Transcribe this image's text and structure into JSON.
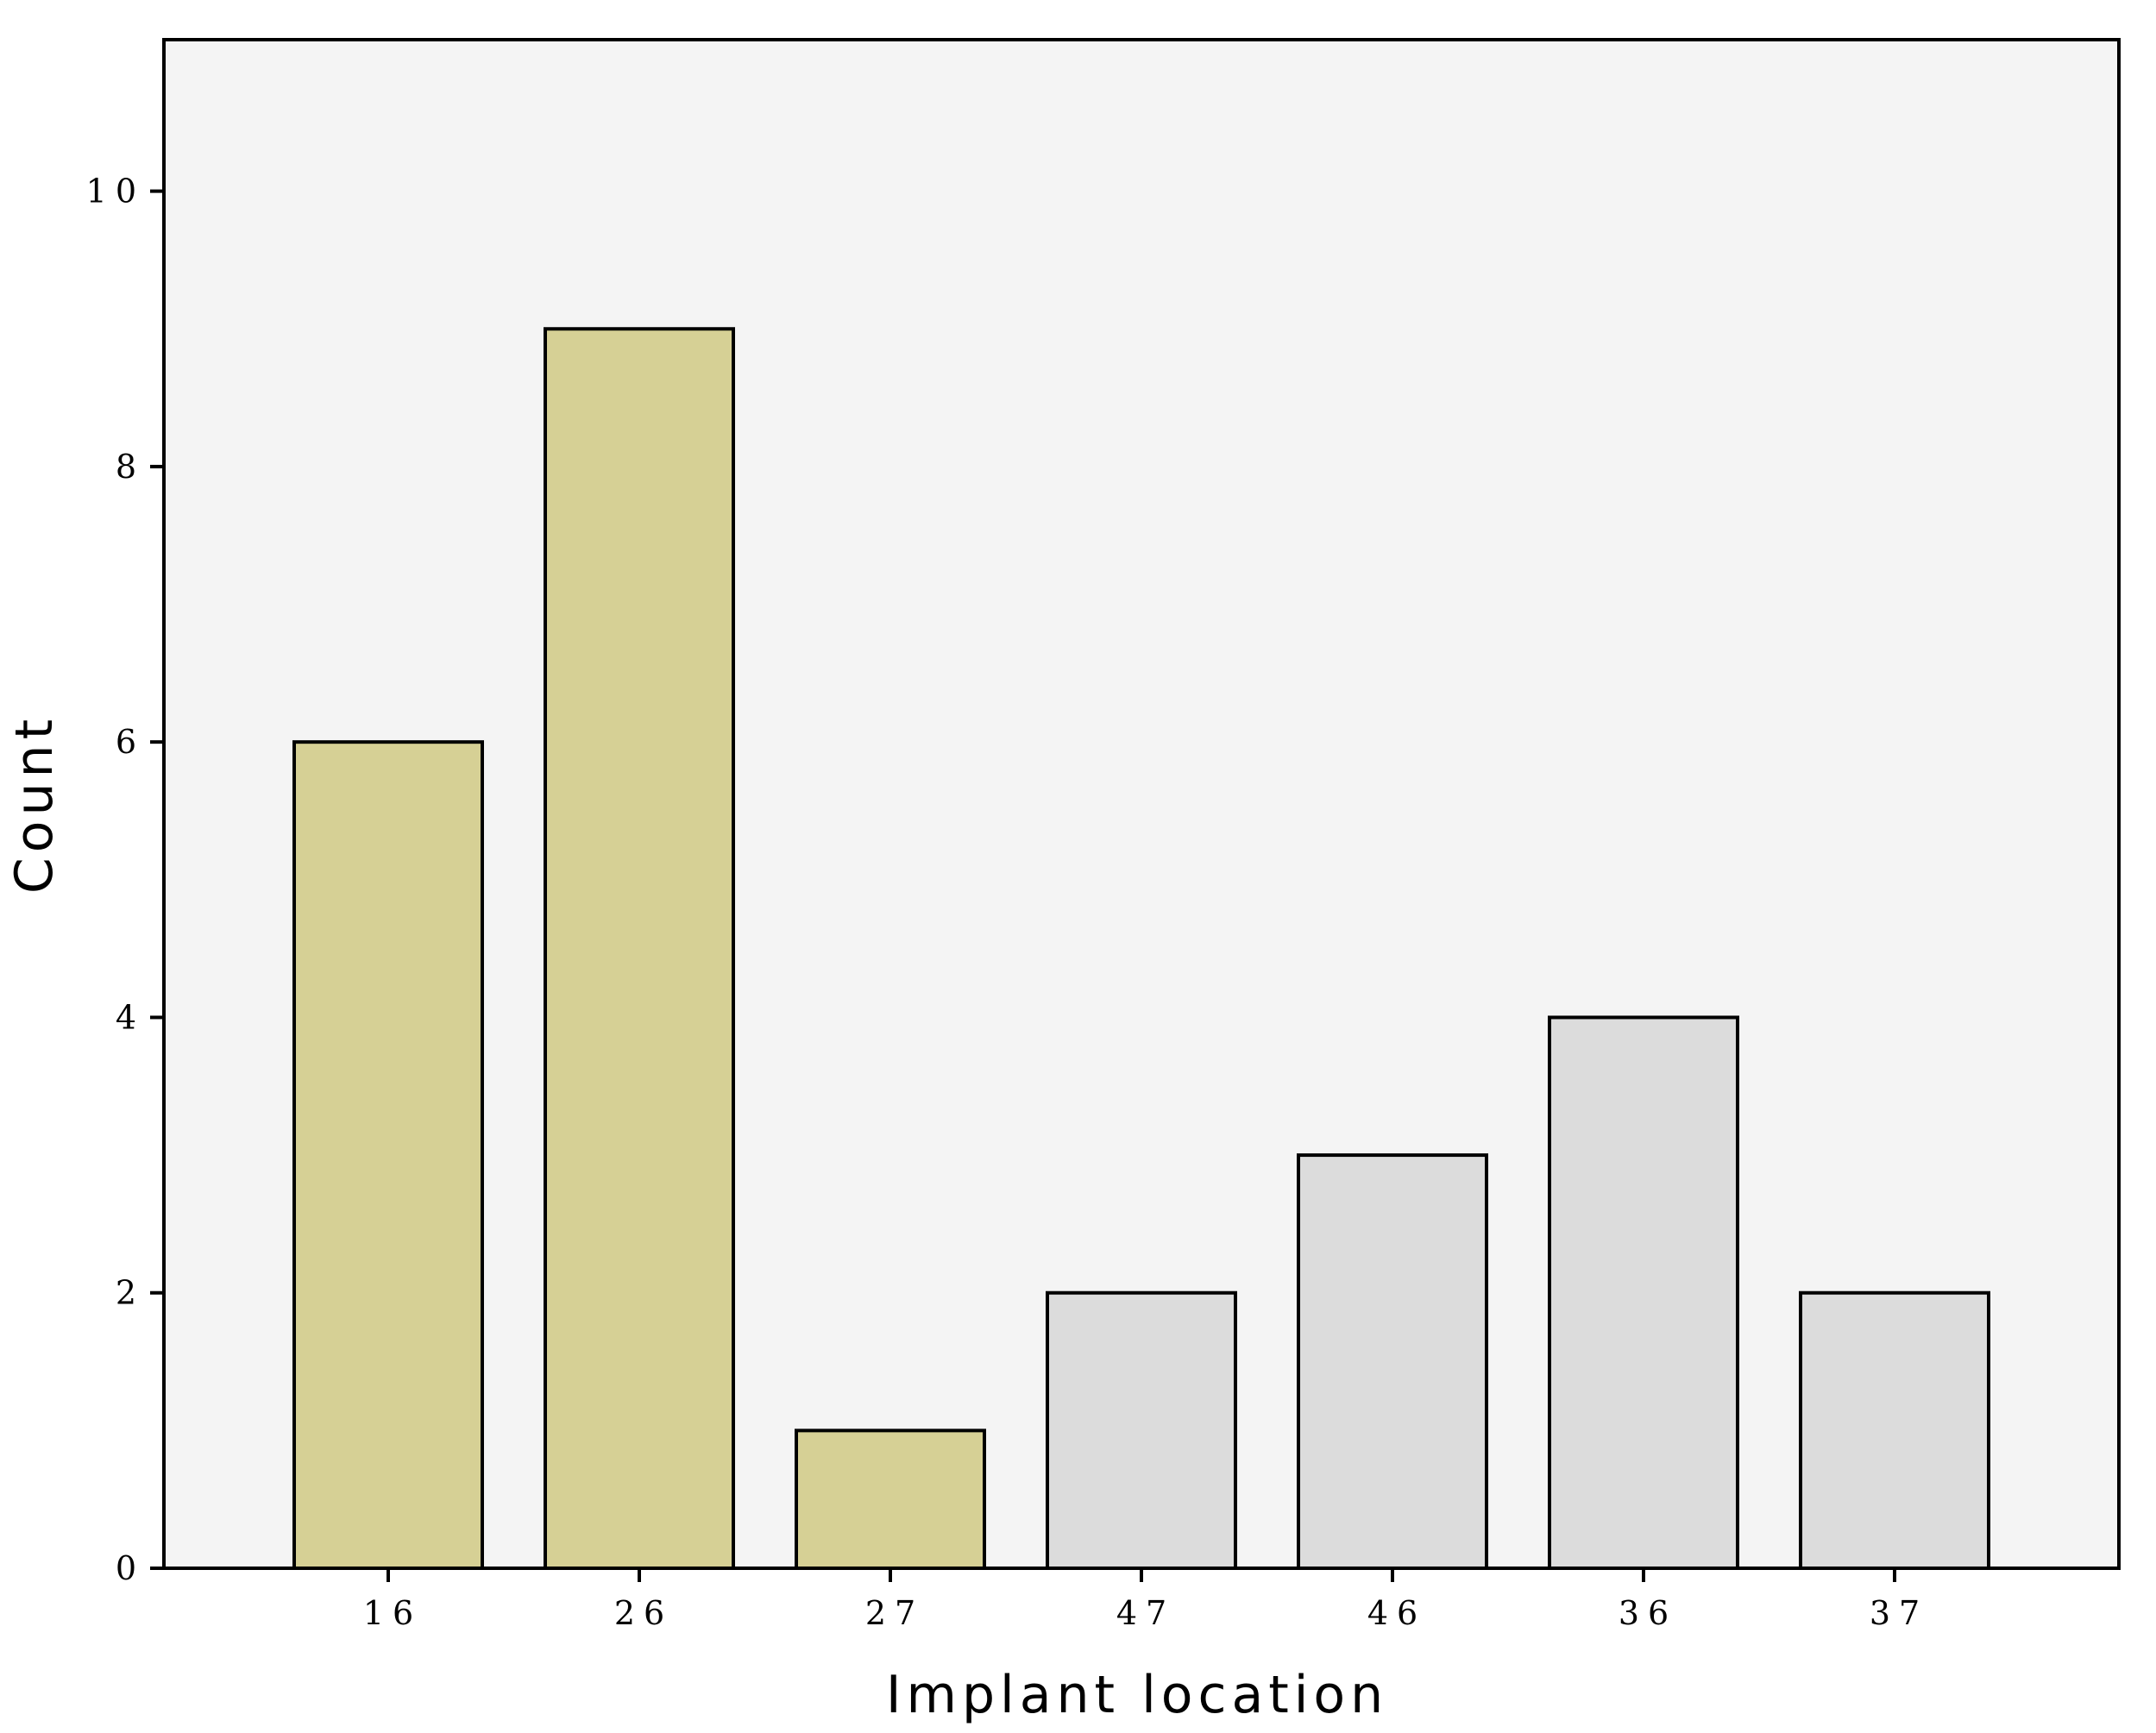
{
  "chart_data": {
    "type": "bar",
    "title": "",
    "xlabel": "Implant location",
    "ylabel": "Count",
    "categories": [
      "16",
      "26",
      "27",
      "47",
      "46",
      "36",
      "37"
    ],
    "values": [
      6,
      9,
      1,
      2,
      3,
      4,
      2
    ],
    "bar_colors": [
      "#d6d095",
      "#d6d095",
      "#d6d095",
      "#dcdcdc",
      "#dcdcdc",
      "#dcdcdc",
      "#dcdcdc"
    ],
    "yticks": [
      0,
      2,
      4,
      6,
      8,
      10
    ],
    "ylim": [
      0,
      11.1
    ],
    "grid": false,
    "legend": "none",
    "plot_background": "#f4f4f4"
  }
}
